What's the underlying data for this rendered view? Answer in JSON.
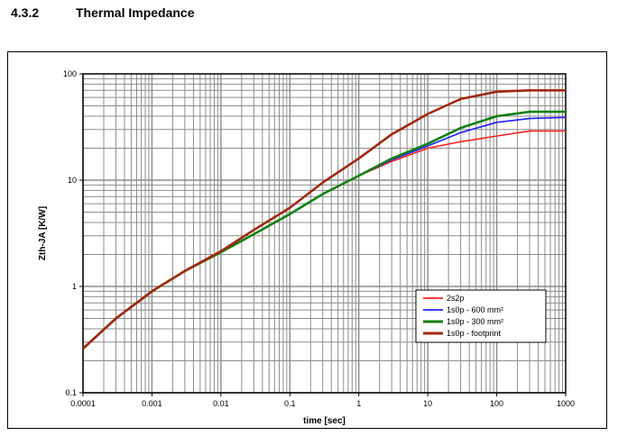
{
  "section": {
    "number": "4.3.2",
    "title": "Thermal Impedance"
  },
  "chart_data": {
    "type": "line",
    "x_scale": "log",
    "y_scale": "log",
    "xlim": [
      0.0001,
      1000
    ],
    "ylim": [
      0.1,
      100
    ],
    "xlabel": "time [sec]",
    "ylabel": "Zth-JA [K/W]",
    "x_ticks": [
      "0.0001",
      "0.001",
      "0.01",
      "0.1",
      "1",
      "10",
      "100",
      "1000"
    ],
    "y_ticks": [
      "0.1",
      "1",
      "10",
      "100"
    ],
    "grid": true,
    "legend_position": "bottom-right",
    "series": [
      {
        "name": "2s2p",
        "color": "#ff2020",
        "x": [
          0.0001,
          0.0003,
          0.001,
          0.003,
          0.01,
          0.03,
          0.1,
          0.3,
          1,
          3,
          10,
          30,
          100,
          300,
          1000
        ],
        "y": [
          0.26,
          0.5,
          0.9,
          1.4,
          2.1,
          3.1,
          4.8,
          7.4,
          11,
          15,
          20,
          23,
          26,
          29,
          29
        ]
      },
      {
        "name": "1s0p - 600 mm²",
        "color": "#2020ff",
        "x": [
          0.0001,
          0.0003,
          0.001,
          0.003,
          0.01,
          0.03,
          0.1,
          0.3,
          1,
          3,
          10,
          30,
          100,
          300,
          1000
        ],
        "y": [
          0.26,
          0.5,
          0.9,
          1.4,
          2.1,
          3.1,
          4.8,
          7.4,
          11,
          15.5,
          21,
          28,
          35,
          38,
          39
        ]
      },
      {
        "name": "1s0p - 300 mm²",
        "color": "#108010",
        "x": [
          0.0001,
          0.0003,
          0.001,
          0.003,
          0.01,
          0.03,
          0.1,
          0.3,
          1,
          3,
          10,
          30,
          100,
          300,
          1000
        ],
        "y": [
          0.26,
          0.5,
          0.9,
          1.4,
          2.1,
          3.1,
          4.8,
          7.4,
          11,
          16,
          22,
          31,
          40,
          44,
          44
        ]
      },
      {
        "name": "1s0p - footprint",
        "color": "#a02810",
        "x": [
          0.0001,
          0.0003,
          0.001,
          0.003,
          0.01,
          0.03,
          0.1,
          0.3,
          1,
          3,
          10,
          30,
          100,
          300,
          1000
        ],
        "y": [
          0.26,
          0.5,
          0.9,
          1.4,
          2.15,
          3.4,
          5.5,
          9.5,
          16,
          27,
          42,
          58,
          68,
          70,
          70
        ]
      }
    ]
  }
}
